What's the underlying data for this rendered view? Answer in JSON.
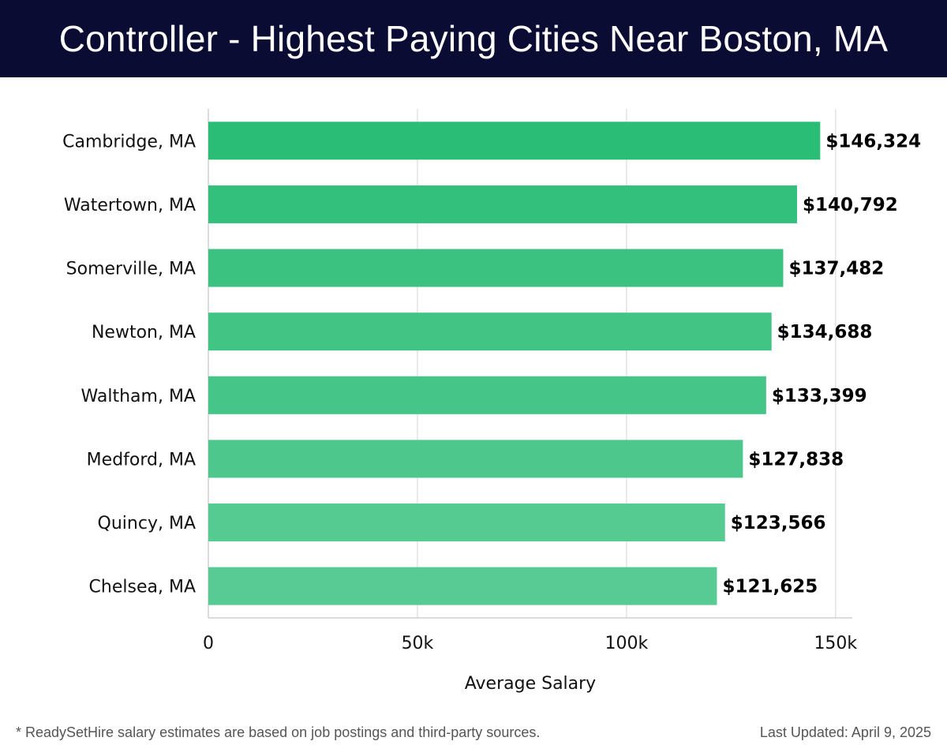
{
  "header": {
    "title": "Controller - Highest Paying Cities Near Boston, MA"
  },
  "chart_data": {
    "type": "bar",
    "orientation": "horizontal",
    "title": "Controller - Highest Paying Cities Near Boston, MA",
    "categories": [
      "Cambridge, MA",
      "Watertown, MA",
      "Somerville, MA",
      "Newton, MA",
      "Waltham, MA",
      "Medford, MA",
      "Quincy, MA",
      "Chelsea, MA"
    ],
    "values": [
      146324,
      140792,
      137482,
      134688,
      133399,
      127838,
      123566,
      121625
    ],
    "value_labels": [
      "$146,324",
      "$140,792",
      "$137,482",
      "$134,688",
      "$133,399",
      "$127,838",
      "$123,566",
      "$121,625"
    ],
    "bar_colors": [
      "#2abd76",
      "#33c07c",
      "#3bc281",
      "#42c485",
      "#45c587",
      "#4ec78c",
      "#55ca91",
      "#58cb94"
    ],
    "xlabel": "Average Salary",
    "ylabel": "",
    "xlim": [
      0,
      154000
    ],
    "xticks": [
      0,
      50000,
      100000,
      150000
    ],
    "xtick_labels": [
      "0",
      "50k",
      "100k",
      "150k"
    ],
    "grid": true
  },
  "footer": {
    "note": "* ReadySetHire salary estimates are based on job postings and third-party sources.",
    "updated": "Last Updated: April 9, 2025"
  }
}
